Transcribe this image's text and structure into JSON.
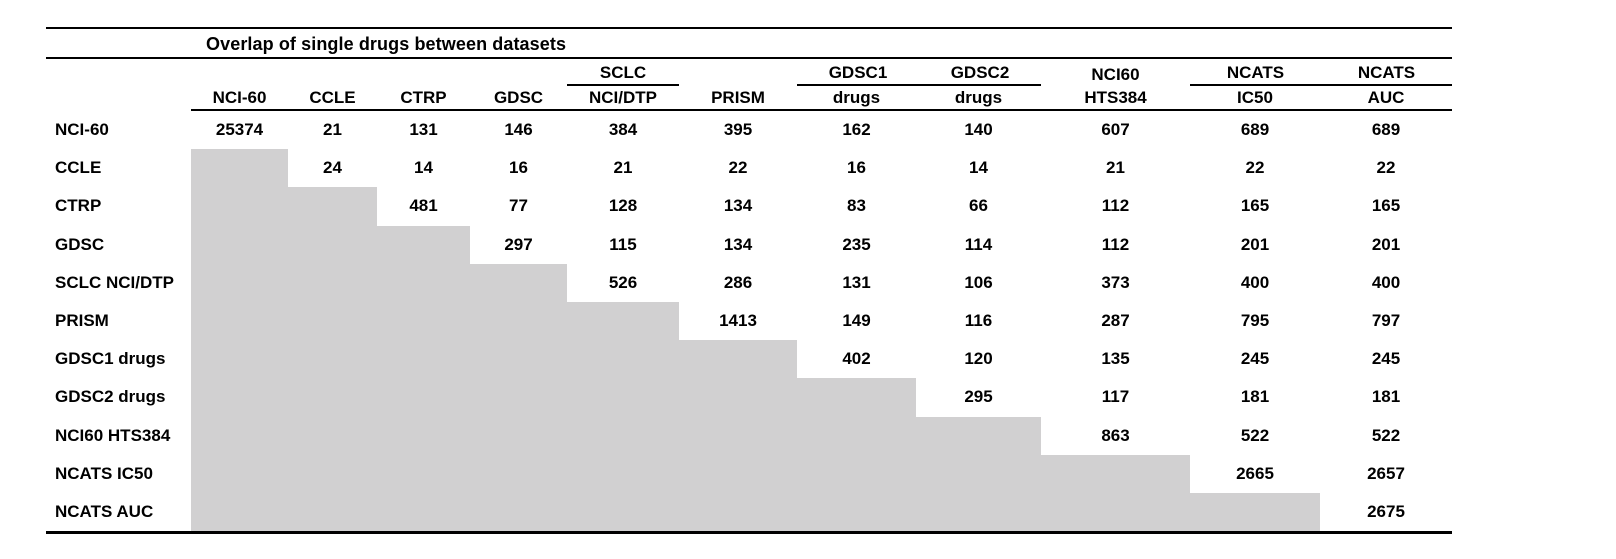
{
  "title": "Overlap of single drugs between datasets",
  "columns": [
    {
      "top": "",
      "bottom": "NCI-60"
    },
    {
      "top": "",
      "bottom": "CCLE"
    },
    {
      "top": "",
      "bottom": "CTRP"
    },
    {
      "top": "",
      "bottom": "GDSC"
    },
    {
      "top": "SCLC",
      "bottom": "NCI/DTP",
      "group": "sclc"
    },
    {
      "top": "",
      "bottom": "PRISM"
    },
    {
      "top": "GDSC1",
      "bottom": "drugs",
      "group": "gdsc-pair"
    },
    {
      "top": "GDSC2",
      "bottom": "drugs",
      "group": "gdsc-pair"
    },
    {
      "top": "NCI60",
      "bottom": "HTS384"
    },
    {
      "top": "NCATS",
      "bottom": "IC50",
      "group": "ncats-pair"
    },
    {
      "top": "NCATS",
      "bottom": "AUC",
      "group": "ncats-pair"
    }
  ],
  "rows": [
    {
      "label": "NCI-60",
      "values": [
        "25374",
        "21",
        "131",
        "146",
        "384",
        "395",
        "162",
        "140",
        "607",
        "689",
        "689"
      ]
    },
    {
      "label": "CCLE",
      "values": [
        null,
        "24",
        "14",
        "16",
        "21",
        "22",
        "16",
        "14",
        "21",
        "22",
        "22"
      ]
    },
    {
      "label": "CTRP",
      "values": [
        null,
        null,
        "481",
        "77",
        "128",
        "134",
        "83",
        "66",
        "112",
        "165",
        "165"
      ]
    },
    {
      "label": "GDSC",
      "values": [
        null,
        null,
        null,
        "297",
        "115",
        "134",
        "235",
        "114",
        "112",
        "201",
        "201"
      ]
    },
    {
      "label": "SCLC NCI/DTP",
      "values": [
        null,
        null,
        null,
        null,
        "526",
        "286",
        "131",
        "106",
        "373",
        "400",
        "400"
      ]
    },
    {
      "label": "PRISM",
      "values": [
        null,
        null,
        null,
        null,
        null,
        "1413",
        "149",
        "116",
        "287",
        "795",
        "797"
      ]
    },
    {
      "label": "GDSC1 drugs",
      "values": [
        null,
        null,
        null,
        null,
        null,
        null,
        "402",
        "120",
        "135",
        "245",
        "245"
      ]
    },
    {
      "label": "GDSC2 drugs",
      "values": [
        null,
        null,
        null,
        null,
        null,
        null,
        null,
        "295",
        "117",
        "181",
        "181"
      ]
    },
    {
      "label": "NCI60 HTS384",
      "values": [
        null,
        null,
        null,
        null,
        null,
        null,
        null,
        null,
        "863",
        "522",
        "522"
      ]
    },
    {
      "label": "NCATS IC50",
      "values": [
        null,
        null,
        null,
        null,
        null,
        null,
        null,
        null,
        null,
        "2665",
        "2657"
      ]
    },
    {
      "label": "NCATS AUC",
      "values": [
        null,
        null,
        null,
        null,
        null,
        null,
        null,
        null,
        null,
        null,
        "2675"
      ]
    }
  ],
  "colors": {
    "shaded_cell": "#d1d0d1",
    "line": "#000000",
    "text": "#000000",
    "background": "#ffffff"
  }
}
